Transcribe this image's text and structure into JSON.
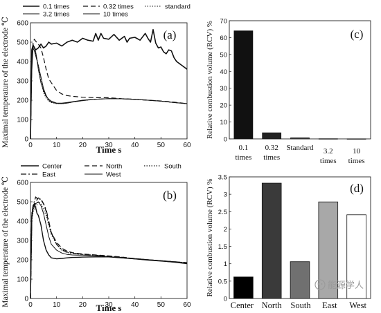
{
  "figure": {
    "watermark": "能源学人"
  },
  "chart_data": [
    {
      "panel_label": "(a)",
      "type": "line",
      "xlabel": "Time s",
      "ylabel": "Maximal temperature of the electrode ℃",
      "xlim": [
        0,
        60
      ],
      "ylim": [
        0,
        600
      ],
      "xticks": [
        "0",
        "10",
        "20",
        "30",
        "40",
        "50",
        "60"
      ],
      "yticks": [
        "0",
        "100",
        "200",
        "300",
        "400",
        "500",
        "600"
      ],
      "grid": false,
      "legend_position": "top (above plot)",
      "series": [
        {
          "name": "0.1 times",
          "style": "solid",
          "width": 1.6,
          "x": [
            0,
            0.5,
            1,
            2,
            3,
            4,
            5,
            6,
            7,
            8,
            10,
            12,
            14,
            16,
            18,
            20,
            22,
            24,
            25,
            26,
            27,
            28,
            30,
            32,
            34,
            36,
            37,
            38,
            40,
            42,
            44,
            45,
            46,
            47,
            48,
            49,
            50,
            51,
            52,
            53,
            54,
            55,
            56,
            57,
            58,
            60
          ],
          "y": [
            0,
            460,
            485,
            460,
            470,
            490,
            470,
            480,
            500,
            490,
            495,
            480,
            500,
            510,
            500,
            520,
            510,
            505,
            545,
            510,
            545,
            520,
            515,
            540,
            510,
            530,
            500,
            520,
            525,
            510,
            545,
            520,
            500,
            565,
            495,
            470,
            475,
            450,
            440,
            460,
            455,
            420,
            400,
            390,
            380,
            360
          ]
        },
        {
          "name": "0.32 times",
          "style": "dashed",
          "width": 1.2,
          "x": [
            0,
            0.5,
            1,
            1.5,
            2,
            3,
            4,
            5,
            6,
            7,
            8,
            9,
            10,
            12,
            14,
            16,
            18,
            20,
            25,
            30,
            35,
            40,
            45,
            50,
            55,
            60
          ],
          "y": [
            0,
            400,
            500,
            515,
            505,
            490,
            470,
            420,
            360,
            310,
            290,
            270,
            250,
            232,
            224,
            220,
            218,
            215,
            213,
            213,
            208,
            205,
            200,
            196,
            190,
            182
          ]
        },
        {
          "name": "3.2 times",
          "style": "solid",
          "width": 1.0,
          "x": [
            0,
            0.5,
            1,
            1.5,
            2,
            2.5,
            3,
            4,
            5,
            6,
            7,
            8,
            10,
            12,
            14,
            16,
            20,
            25,
            30,
            35,
            40,
            45,
            50,
            55,
            60
          ],
          "y": [
            0,
            350,
            480,
            470,
            450,
            410,
            360,
            290,
            250,
            220,
            205,
            195,
            185,
            185,
            188,
            192,
            200,
            205,
            208,
            207,
            204,
            200,
            195,
            188,
            182
          ]
        },
        {
          "name": "10 times",
          "style": "solid",
          "width": 1.0,
          "x": [
            0,
            0.5,
            1,
            1.5,
            2,
            3,
            4,
            5,
            6,
            7,
            8,
            10,
            12,
            14,
            16,
            20,
            25,
            30,
            35,
            40,
            45,
            50,
            55,
            60
          ],
          "y": [
            0,
            410,
            470,
            455,
            430,
            380,
            320,
            260,
            225,
            200,
            190,
            183,
            182,
            185,
            190,
            198,
            205,
            208,
            207,
            204,
            200,
            195,
            188,
            182
          ]
        },
        {
          "name": "standard",
          "style": "dotted",
          "width": 1.0,
          "x": [
            0,
            0.5,
            1,
            1.5,
            2,
            3,
            4,
            5,
            6,
            7,
            8,
            10,
            12,
            14,
            16,
            20,
            25,
            30,
            35,
            40,
            45,
            50,
            55,
            60
          ],
          "y": [
            0,
            430,
            490,
            470,
            440,
            380,
            300,
            240,
            210,
            195,
            188,
            182,
            182,
            185,
            190,
            198,
            205,
            208,
            207,
            204,
            200,
            195,
            188,
            182
          ]
        }
      ]
    },
    {
      "panel_label": "(b)",
      "type": "line",
      "xlabel": "Time s",
      "ylabel": "Maximal temperature of the electrode ℃",
      "xlim": [
        0,
        60
      ],
      "ylim": [
        0,
        600
      ],
      "xticks": [
        "0",
        "10",
        "20",
        "30",
        "40",
        "50",
        "60"
      ],
      "yticks": [
        "0",
        "100",
        "200",
        "300",
        "400",
        "500",
        "600"
      ],
      "grid": false,
      "legend_position": "top (above plot)",
      "series": [
        {
          "name": "Center",
          "style": "solid",
          "width": 1.4,
          "x": [
            0,
            0.5,
            1,
            1.5,
            2,
            2.5,
            3,
            4,
            5,
            6,
            7,
            8,
            10,
            12,
            14,
            16,
            18,
            20,
            25,
            30,
            35,
            40,
            45,
            50,
            55,
            60
          ],
          "y": [
            0,
            430,
            480,
            490,
            470,
            440,
            430,
            380,
            300,
            250,
            225,
            210,
            205,
            207,
            210,
            212,
            213,
            214,
            215,
            215,
            210,
            205,
            200,
            195,
            188,
            180
          ]
        },
        {
          "name": "North",
          "style": "dashed",
          "width": 1.3,
          "x": [
            0,
            0.5,
            1,
            2,
            3,
            4,
            5,
            6,
            7,
            8,
            10,
            12,
            14,
            16,
            18,
            20,
            25,
            30,
            35,
            40,
            45,
            50,
            55,
            60
          ],
          "y": [
            0,
            420,
            470,
            500,
            520,
            510,
            490,
            450,
            390,
            340,
            290,
            260,
            245,
            237,
            233,
            230,
            225,
            220,
            214,
            206,
            200,
            195,
            190,
            185
          ]
        },
        {
          "name": "South",
          "style": "dotted",
          "width": 1.2,
          "x": [
            0,
            0.5,
            1,
            2,
            3,
            4,
            5,
            6,
            7,
            8,
            10,
            12,
            14,
            16,
            18,
            20,
            25,
            30,
            35,
            40,
            45,
            50,
            55,
            60
          ],
          "y": [
            0,
            400,
            450,
            470,
            500,
            490,
            460,
            430,
            380,
            330,
            280,
            250,
            238,
            233,
            230,
            228,
            224,
            219,
            213,
            206,
            200,
            195,
            190,
            185
          ]
        },
        {
          "name": "East",
          "style": "dashdot",
          "width": 1.3,
          "x": [
            0,
            0.5,
            1,
            2,
            3,
            4,
            5,
            6,
            7,
            8,
            10,
            12,
            14,
            16,
            18,
            20,
            25,
            30,
            35,
            40,
            45,
            50,
            55,
            60
          ],
          "y": [
            0,
            440,
            480,
            525,
            510,
            515,
            490,
            460,
            400,
            340,
            280,
            252,
            240,
            234,
            231,
            228,
            223,
            218,
            212,
            206,
            200,
            195,
            190,
            185
          ]
        },
        {
          "name": "West",
          "style": "solid",
          "width": 1.0,
          "x": [
            0,
            0.5,
            1,
            2,
            3,
            4,
            5,
            6,
            7,
            8,
            10,
            12,
            14,
            16,
            18,
            20,
            25,
            30,
            35,
            40,
            45,
            50,
            55,
            60
          ],
          "y": [
            0,
            410,
            460,
            490,
            500,
            480,
            440,
            380,
            320,
            280,
            250,
            235,
            228,
            225,
            224,
            224,
            220,
            216,
            210,
            204,
            198,
            193,
            188,
            183
          ]
        }
      ]
    },
    {
      "panel_label": "(c)",
      "type": "bar",
      "ylabel": "Relative combustion volume (RCV) %",
      "ylim": [
        0,
        70
      ],
      "yticks": [
        "0",
        "10",
        "20",
        "30",
        "40",
        "50",
        "60",
        "70"
      ],
      "grid": false,
      "categories": [
        {
          "line1": "0.1",
          "line2": "times"
        },
        {
          "line1": "0.32",
          "line2": "times"
        },
        {
          "line1": "Standard",
          "line2": ""
        },
        {
          "line1": "3.2",
          "line2": "times"
        },
        {
          "line1": "10",
          "line2": "times"
        }
      ],
      "values": [
        64,
        3.6,
        0.6,
        0.1,
        0.05
      ],
      "colors": [
        "#111111",
        "#222222",
        "#444444",
        "#666666",
        "#888888"
      ]
    },
    {
      "panel_label": "(d)",
      "type": "bar",
      "ylabel": "Relative combustion volume (RCV) %",
      "ylim": [
        0,
        3.5
      ],
      "yticks": [
        "0",
        "0.5",
        "1",
        "1.5",
        "2",
        "2.5",
        "3",
        "3.5"
      ],
      "grid": false,
      "categories": [
        "Center",
        "North",
        "South",
        "East",
        "West"
      ],
      "values": [
        0.62,
        3.32,
        1.06,
        2.78,
        2.41
      ],
      "colors": [
        "#000000",
        "#3a3a3a",
        "#707070",
        "#a8a8a8",
        "#ffffff"
      ]
    }
  ]
}
